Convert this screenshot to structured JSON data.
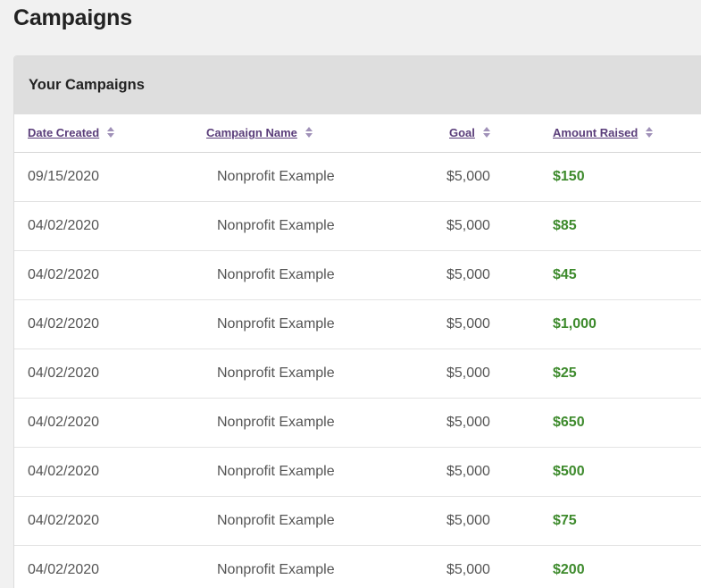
{
  "page": {
    "title": "Campaigns"
  },
  "panel": {
    "title": "Your Campaigns"
  },
  "table": {
    "headers": {
      "date": "Date Created",
      "name": "Campaign Name",
      "goal": "Goal",
      "raised": "Amount Raised"
    },
    "rows": [
      {
        "date": "09/15/2020",
        "name": "Nonprofit Example",
        "goal": "$5,000",
        "raised": "$150"
      },
      {
        "date": "04/02/2020",
        "name": "Nonprofit Example",
        "goal": "$5,000",
        "raised": "$85"
      },
      {
        "date": "04/02/2020",
        "name": "Nonprofit Example",
        "goal": "$5,000",
        "raised": "$45"
      },
      {
        "date": "04/02/2020",
        "name": "Nonprofit Example",
        "goal": "$5,000",
        "raised": "$1,000"
      },
      {
        "date": "04/02/2020",
        "name": "Nonprofit Example",
        "goal": "$5,000",
        "raised": "$25"
      },
      {
        "date": "04/02/2020",
        "name": "Nonprofit Example",
        "goal": "$5,000",
        "raised": "$650"
      },
      {
        "date": "04/02/2020",
        "name": "Nonprofit Example",
        "goal": "$5,000",
        "raised": "$500"
      },
      {
        "date": "04/02/2020",
        "name": "Nonprofit Example",
        "goal": "$5,000",
        "raised": "$75"
      },
      {
        "date": "04/02/2020",
        "name": "Nonprofit Example",
        "goal": "$5,000",
        "raised": "$200"
      }
    ]
  },
  "colors": {
    "header_link": "#5a3d7a",
    "sort_icon": "#a091b8",
    "amount_raised": "#3d8a2c",
    "panel_header_bg": "#dedede",
    "page_bg": "#f1f1f1"
  },
  "icons": {
    "sort": "sort-icon"
  }
}
